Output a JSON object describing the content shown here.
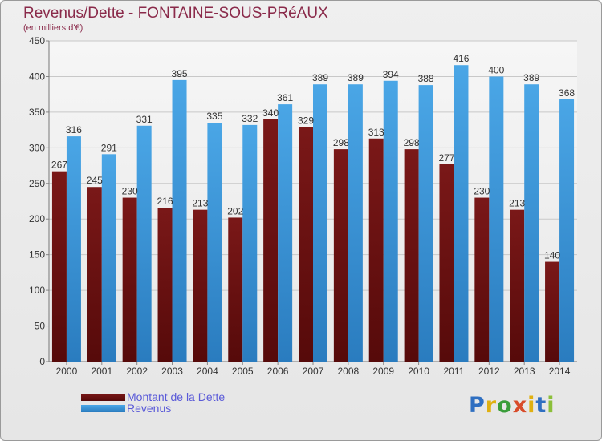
{
  "header": {
    "title": "Revenus/Dette - FONTAINE-SOUS-PRéAUX",
    "subtitle": "(en milliers d'€)"
  },
  "legend": {
    "debt_label": "Montant de la Dette",
    "revenue_label": "Revenus"
  },
  "logo": {
    "text": "Proxiti",
    "letters": [
      "P",
      "r",
      "o",
      "x",
      "i",
      "t",
      "i"
    ],
    "letter_colors": [
      "#2f6fc1",
      "#e0b010",
      "#3a9d3a",
      "#d84b2a",
      "#e0b010",
      "#2f6fc1",
      "#8bbf3a"
    ]
  },
  "colors": {
    "debt": "#7a1818",
    "debt_dark": "#560a0a",
    "revenue": "#4aa6e6",
    "revenue_dark": "#2a7cbf",
    "axis_text": "#333333",
    "grid": "#c8c8c8"
  },
  "chart_data": {
    "type": "bar",
    "title": "Revenus/Dette - FONTAINE-SOUS-PRéAUX",
    "ylabel": "(en milliers d'€)",
    "xlabel": "",
    "ylim": [
      0,
      450
    ],
    "yticks": [
      0,
      50,
      100,
      150,
      200,
      250,
      300,
      350,
      400,
      450
    ],
    "grid": true,
    "legend_position": "bottom-left",
    "categories": [
      "2000",
      "2001",
      "2002",
      "2003",
      "2004",
      "2005",
      "2006",
      "2007",
      "2008",
      "2009",
      "2010",
      "2011",
      "2012",
      "2013",
      "2014"
    ],
    "series": [
      {
        "name": "Montant de la Dette",
        "values": [
          267,
          245,
          230,
          216,
          213,
          202,
          340,
          329,
          298,
          313,
          298,
          277,
          230,
          213,
          140
        ]
      },
      {
        "name": "Revenus",
        "values": [
          316,
          291,
          331,
          395,
          335,
          332,
          361,
          389,
          389,
          394,
          388,
          416,
          400,
          389,
          368
        ]
      }
    ]
  }
}
